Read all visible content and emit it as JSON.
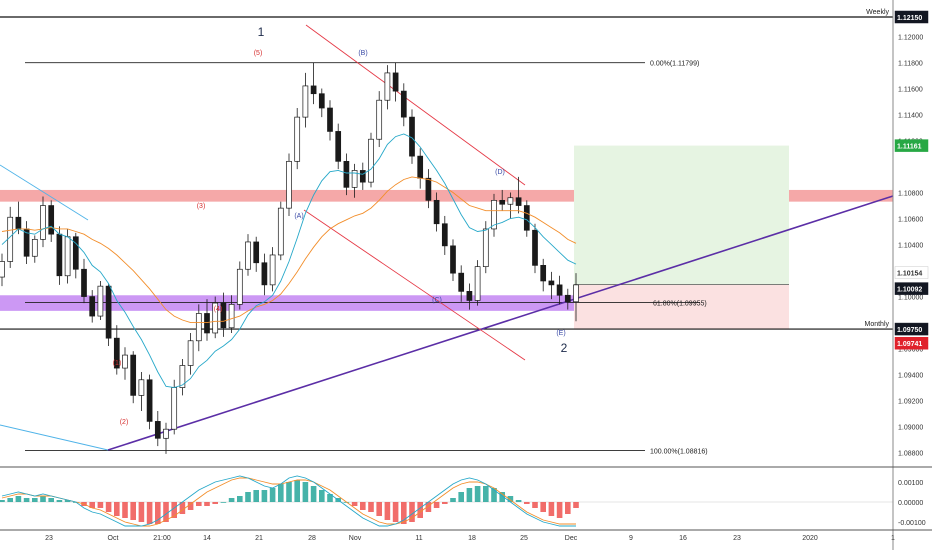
{
  "chart_data": {
    "type": "candlestick",
    "price_axis": {
      "ylim": [
        1.0855,
        1.1228
      ],
      "ticks": [
        1.12,
        1.118,
        1.116,
        1.114,
        1.112,
        1.108,
        1.106,
        1.104,
        1.1,
        1.096,
        1.094,
        1.092,
        1.09,
        1.088
      ]
    },
    "x_ticks": [
      "23",
      "Oct",
      "21:00",
      "14",
      "21",
      "28",
      "Nov",
      "11",
      "18",
      "25",
      "Dec",
      "9",
      "16",
      "23",
      "2020",
      "1"
    ],
    "price_badges": [
      {
        "value": "1.12150",
        "bg": "#131722",
        "fg": "#ffffff"
      },
      {
        "value": "1.11161",
        "bg": "#27a844",
        "fg": "#ffffff"
      },
      {
        "value": "1.10154",
        "bg": "#ffffff",
        "fg": "#333333"
      },
      {
        "value": "1.10092",
        "bg": "#131722",
        "fg": "#ffffff"
      },
      {
        "value": "1.09750",
        "bg": "#131722",
        "fg": "#ffffff"
      },
      {
        "value": "1.09741",
        "bg": "#e0212b",
        "fg": "#ffffff"
      }
    ],
    "levels": [
      {
        "label": "Weekly",
        "value": 1.1215
      },
      {
        "label": "Monthly",
        "value": 1.0975
      }
    ],
    "fibonacci": [
      {
        "label": "0.00%(1.11799)",
        "value": 1.11799
      },
      {
        "label": "61.80%(1.09955)",
        "value": 1.09955
      },
      {
        "label": "100.00%(1.08816)",
        "value": 1.08816
      }
    ],
    "wave_labels": {
      "major": [
        "1",
        "2"
      ],
      "corrective": [
        "(A)",
        "(B)",
        "(C)",
        "(D)",
        "(E)"
      ],
      "impulse": [
        "(1)",
        "(2)",
        "(3)",
        "(4)",
        "(5)"
      ]
    },
    "zones": {
      "resistance": [
        1.1073,
        1.1082
      ],
      "support": [
        1.0989,
        1.1001
      ],
      "profit_target": 1.11161,
      "entry": 1.10092,
      "stop": 1.0975
    },
    "candles": [
      [
        1.1015,
        1.1033,
        1.1008,
        1.1027
      ],
      [
        1.1027,
        1.1069,
        1.1022,
        1.1061
      ],
      [
        1.1061,
        1.1073,
        1.1048,
        1.1052
      ],
      [
        1.1052,
        1.1058,
        1.1025,
        1.1031
      ],
      [
        1.1031,
        1.1047,
        1.1026,
        1.1044
      ],
      [
        1.1044,
        1.1077,
        1.1038,
        1.107
      ],
      [
        1.107,
        1.1074,
        1.1042,
        1.1048
      ],
      [
        1.1048,
        1.1054,
        1.1009,
        1.1016
      ],
      [
        1.1016,
        1.1052,
        1.101,
        1.1046
      ],
      [
        1.1046,
        1.1049,
        1.1014,
        1.1021
      ],
      [
        1.1021,
        1.1029,
        1.0995,
        1.1
      ],
      [
        1.1,
        1.1005,
        1.098,
        1.0985
      ],
      [
        1.0985,
        1.1012,
        1.0982,
        1.1008
      ],
      [
        1.1008,
        1.101,
        1.0962,
        1.0968
      ],
      [
        1.0968,
        1.0978,
        1.094,
        1.0945
      ],
      [
        1.0945,
        1.0961,
        1.0936,
        1.0955
      ],
      [
        1.0955,
        1.0958,
        1.0918,
        1.0924
      ],
      [
        1.0924,
        1.0942,
        1.0912,
        1.0936
      ],
      [
        1.0936,
        1.094,
        1.0898,
        1.0904
      ],
      [
        1.0904,
        1.0912,
        1.0885,
        1.0891
      ],
      [
        1.0891,
        1.0903,
        1.0879,
        1.0898
      ],
      [
        1.0898,
        1.0936,
        1.0894,
        1.093
      ],
      [
        1.093,
        1.0952,
        1.0924,
        1.0947
      ],
      [
        1.0947,
        1.0972,
        1.094,
        1.0966
      ],
      [
        1.0966,
        1.0994,
        1.0958,
        1.0987
      ],
      [
        1.0987,
        1.0998,
        1.0966,
        1.0972
      ],
      [
        1.0972,
        1.1,
        1.0968,
        1.0995
      ],
      [
        1.0995,
        1.1003,
        1.0969,
        1.0976
      ],
      [
        1.0976,
        1.1001,
        1.0972,
        1.0994
      ],
      [
        1.0994,
        1.1027,
        1.099,
        1.1021
      ],
      [
        1.1021,
        1.1048,
        1.1016,
        1.1042
      ],
      [
        1.1042,
        1.1046,
        1.1019,
        1.1026
      ],
      [
        1.1026,
        1.1033,
        1.1001,
        1.1009
      ],
      [
        1.1009,
        1.1038,
        1.1004,
        1.1032
      ],
      [
        1.1032,
        1.1073,
        1.1028,
        1.1068
      ],
      [
        1.1068,
        1.111,
        1.1062,
        1.1104
      ],
      [
        1.1104,
        1.1145,
        1.1098,
        1.1138
      ],
      [
        1.1138,
        1.1172,
        1.113,
        1.1162
      ],
      [
        1.1162,
        1.118,
        1.1148,
        1.1156
      ],
      [
        1.1156,
        1.116,
        1.1138,
        1.1145
      ],
      [
        1.1145,
        1.1151,
        1.112,
        1.1127
      ],
      [
        1.1127,
        1.1133,
        1.1098,
        1.1104
      ],
      [
        1.1104,
        1.111,
        1.1078,
        1.1084
      ],
      [
        1.1084,
        1.1102,
        1.1076,
        1.1097
      ],
      [
        1.1097,
        1.1103,
        1.1082,
        1.1088
      ],
      [
        1.1088,
        1.1126,
        1.1084,
        1.1121
      ],
      [
        1.1121,
        1.1158,
        1.1115,
        1.1151
      ],
      [
        1.1151,
        1.1178,
        1.1144,
        1.1172
      ],
      [
        1.1172,
        1.118,
        1.115,
        1.1158
      ],
      [
        1.1158,
        1.1164,
        1.1131,
        1.1138
      ],
      [
        1.1138,
        1.1144,
        1.1102,
        1.1108
      ],
      [
        1.1108,
        1.1114,
        1.1083,
        1.1091
      ],
      [
        1.1091,
        1.1098,
        1.1068,
        1.1074
      ],
      [
        1.1074,
        1.108,
        1.105,
        1.1056
      ],
      [
        1.1056,
        1.1062,
        1.1032,
        1.1039
      ],
      [
        1.1039,
        1.1044,
        1.1012,
        1.1018
      ],
      [
        1.1018,
        1.1024,
        1.0996,
        1.1004
      ],
      [
        1.1004,
        1.101,
        1.099,
        1.0997
      ],
      [
        1.0997,
        1.1028,
        1.0993,
        1.1023
      ],
      [
        1.1023,
        1.1058,
        1.1018,
        1.1052
      ],
      [
        1.1052,
        1.1079,
        1.1046,
        1.1074
      ],
      [
        1.1074,
        1.1082,
        1.1066,
        1.1071
      ],
      [
        1.1071,
        1.108,
        1.106,
        1.1076
      ],
      [
        1.1076,
        1.1092,
        1.1064,
        1.107
      ],
      [
        1.107,
        1.1074,
        1.1046,
        1.1051
      ],
      [
        1.1051,
        1.1056,
        1.1018,
        1.1024
      ],
      [
        1.1024,
        1.1029,
        1.1004,
        1.1012
      ],
      [
        1.1012,
        1.1019,
        1.0998,
        1.1009
      ],
      [
        1.1009,
        1.1016,
        1.0994,
        1.1001
      ],
      [
        1.1001,
        1.1006,
        1.099,
        1.0996
      ],
      [
        1.0996,
        1.1018,
        1.0981,
        1.1009
      ]
    ],
    "ema_fast": [
      1.104,
      1.1046,
      1.1052,
      1.1049,
      1.1048,
      1.1052,
      1.1054,
      1.1048,
      1.1046,
      1.1041,
      1.1034,
      1.1024,
      1.1019,
      1.101,
      1.0997,
      1.0988,
      1.0977,
      1.0967,
      1.0955,
      1.0942,
      1.0931,
      1.093,
      1.0932,
      1.0937,
      1.0946,
      1.0951,
      1.0958,
      1.0962,
      1.0967,
      1.0975,
      1.0986,
      1.0993,
      1.0996,
      1.1001,
      1.1012,
      1.1027,
      1.1045,
      1.1064,
      1.1078,
      1.1089,
      1.1096,
      1.1097,
      1.1095,
      1.1095,
      1.1094,
      1.1098,
      1.1106,
      1.1117,
      1.1123,
      1.1125,
      1.1122,
      1.1115,
      1.1106,
      1.1097,
      1.1087,
      1.1075,
      1.1063,
      1.1053,
      1.105,
      1.1051,
      1.1055,
      1.1057,
      1.106,
      1.1061,
      1.1059,
      1.1053,
      1.1046,
      1.104,
      1.1034,
      1.1028,
      1.1025
    ],
    "ema_slow": [
      1.105,
      1.1051,
      1.1052,
      1.1052,
      1.1051,
      1.1052,
      1.1053,
      1.1052,
      1.1052,
      1.105,
      1.1048,
      1.1044,
      1.1041,
      1.1037,
      1.1032,
      1.1026,
      1.102,
      1.1013,
      1.1006,
      1.0998,
      1.099,
      1.0985,
      1.0982,
      1.098,
      1.098,
      1.098,
      1.0981,
      1.0981,
      1.0983,
      1.0985,
      1.0989,
      1.0992,
      1.0994,
      1.0997,
      1.1002,
      1.101,
      1.1019,
      1.1029,
      1.1038,
      1.1046,
      1.1052,
      1.1056,
      1.1059,
      1.1062,
      1.1064,
      1.1068,
      1.1074,
      1.1081,
      1.1086,
      1.109,
      1.1092,
      1.1091,
      1.109,
      1.1088,
      1.1084,
      1.108,
      1.1075,
      1.107,
      1.1068,
      1.1066,
      1.1066,
      1.1066,
      1.1066,
      1.1066,
      1.1064,
      1.1061,
      1.1057,
      1.1053,
      1.1049,
      1.1044,
      1.1041
    ],
    "oscillator": {
      "ylim": [
        -0.0012,
        0.0014
      ],
      "ticks": [
        "0.00100",
        "0.00000",
        "-0.00100"
      ],
      "histogram": [
        0.0001,
        0.0002,
        0.0003,
        0.0002,
        0.0002,
        0.0003,
        0.0002,
        0.0001,
        0.0001,
        0.0,
        -0.0002,
        -0.0003,
        -0.0003,
        -0.0005,
        -0.0007,
        -0.0008,
        -0.0009,
        -0.001,
        -0.0011,
        -0.0011,
        -0.001,
        -0.0008,
        -0.0006,
        -0.0004,
        -0.0002,
        -0.0002,
        -0.0001,
        0.0,
        0.0002,
        0.0003,
        0.0005,
        0.0006,
        0.0006,
        0.0007,
        0.0009,
        0.001,
        0.0011,
        0.001,
        0.0008,
        0.0006,
        0.0004,
        0.0002,
        0.0,
        -0.0002,
        -0.0004,
        -0.0005,
        -0.0007,
        -0.0009,
        -0.001,
        -0.0011,
        -0.001,
        -0.0008,
        -0.0005,
        -0.0003,
        -0.0001,
        0.0002,
        0.0005,
        0.0007,
        0.0008,
        0.0008,
        0.0007,
        0.0005,
        0.0003,
        0.0001,
        -0.0001,
        -0.0003,
        -0.0005,
        -0.0007,
        -0.0008,
        -0.0006,
        -0.0003
      ],
      "macd": [
        0.0003,
        0.0004,
        0.0005,
        0.0004,
        0.0003,
        0.0004,
        0.0003,
        0.0002,
        0.0001,
        0.0,
        -0.0003,
        -0.0005,
        -0.0006,
        -0.0008,
        -0.001,
        -0.0012,
        -0.0012,
        -0.0012,
        -0.0011,
        -0.0009,
        -0.0006,
        -0.0003,
        0.0,
        0.0003,
        0.0006,
        0.0008,
        0.001,
        0.0011,
        0.0012,
        0.0013,
        0.0012,
        0.001,
        0.0008,
        0.0007,
        0.0009,
        0.0012,
        0.0013,
        0.0012,
        0.001,
        0.0007,
        0.0004,
        0.0001,
        -0.0002,
        -0.0005,
        -0.0008,
        -0.001,
        -0.0012,
        -0.0012,
        -0.0011,
        -0.0009,
        -0.0006,
        -0.0003,
        0.0,
        0.0003,
        0.0006,
        0.0009,
        0.0011,
        0.0012,
        0.0011,
        0.0009,
        0.0006,
        0.0003,
        0.0,
        -0.0003,
        -0.0006,
        -0.0008,
        -0.001,
        -0.0011,
        -0.0012,
        -0.0012,
        -0.0012
      ],
      "signal": [
        0.0002,
        0.0003,
        0.0004,
        0.0004,
        0.0003,
        0.0003,
        0.0003,
        0.0002,
        0.0001,
        0.0,
        -0.0001,
        -0.0003,
        -0.0004,
        -0.0006,
        -0.0008,
        -0.001,
        -0.0011,
        -0.0012,
        -0.0012,
        -0.0011,
        -0.0009,
        -0.0007,
        -0.0004,
        -0.0001,
        0.0002,
        0.0005,
        0.0007,
        0.0009,
        0.0011,
        0.0012,
        0.0012,
        0.0011,
        0.001,
        0.0009,
        0.0009,
        0.001,
        0.0011,
        0.0011,
        0.001,
        0.0008,
        0.0006,
        0.0003,
        0.0,
        -0.0003,
        -0.0006,
        -0.0008,
        -0.001,
        -0.0011,
        -0.0011,
        -0.001,
        -0.0008,
        -0.0005,
        -0.0002,
        0.0001,
        0.0004,
        0.0007,
        0.0009,
        0.001,
        0.001,
        0.0009,
        0.0007,
        0.0004,
        0.0001,
        -0.0002,
        -0.0005,
        -0.0007,
        -0.0009,
        -0.001,
        -0.0011,
        -0.0011,
        -0.0011
      ]
    }
  },
  "colors": {
    "up": "#1a1a1a",
    "down": "#1a1a1a",
    "ema_fast": "#26a8c9",
    "ema_slow": "#f28e2b",
    "channel": "#e53946",
    "trendline": "#5b2ea6",
    "blue_line": "#4fb3e8",
    "hist_pos": "#26a69a",
    "hist_neg": "#ef5350",
    "resistance": "#f28b8b",
    "support": "#b66cf0",
    "profit_zone": "#e6f4e2",
    "stop_zone": "#fbe1e1"
  }
}
